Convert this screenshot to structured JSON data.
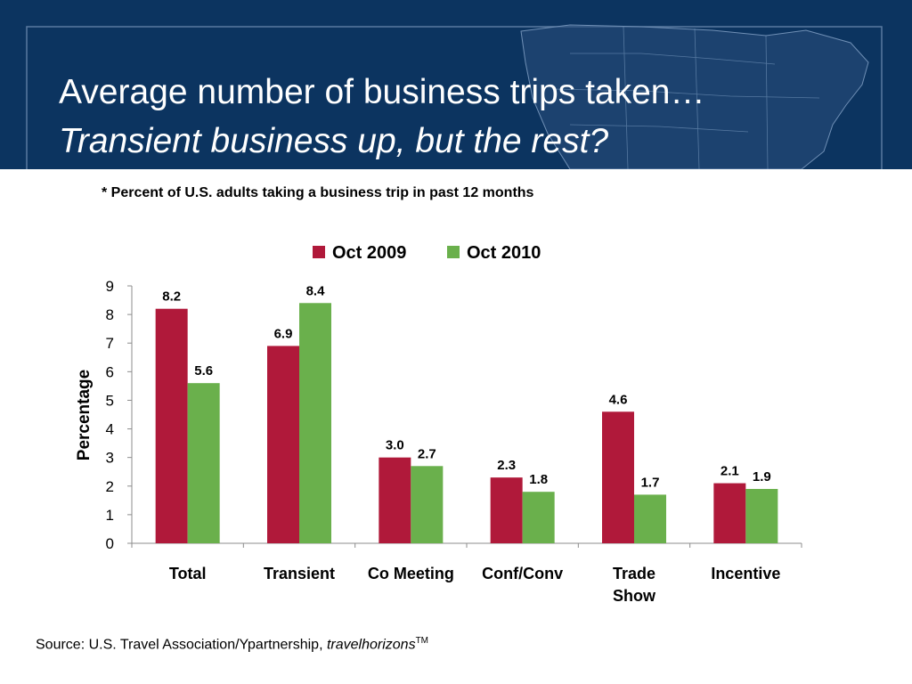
{
  "slide": {
    "title_line1": "Average number of business trips taken…",
    "title_line2": "Transient business up, but the rest?",
    "subtitle": "* Percent of U.S. adults taking a business trip in past 12 months",
    "source_prefix": "Source:  U.S. Travel Association/Ypartnership, ",
    "source_italic": "travelhorizons",
    "source_sup": "TM"
  },
  "colors": {
    "banner": "#0c3460",
    "oct2009": "#b0193a",
    "oct2010": "#6ab04c"
  },
  "chart_data": {
    "type": "bar",
    "title": "",
    "xlabel": "",
    "ylabel": "Percentage",
    "ylim": [
      0,
      9
    ],
    "yticks": [
      "0",
      "1",
      "2",
      "3",
      "4",
      "5",
      "6",
      "7",
      "8",
      "9"
    ],
    "grid": false,
    "legend_position": "top",
    "categories": [
      [
        "Total"
      ],
      [
        "Transient"
      ],
      [
        "Co Meeting"
      ],
      [
        "Conf/Conv"
      ],
      [
        "Trade",
        "Show"
      ],
      [
        "Incentive"
      ]
    ],
    "series": [
      {
        "name": "Oct 2009",
        "color": "#b0193a",
        "values": [
          8.2,
          6.9,
          3.0,
          2.3,
          4.6,
          2.1
        ],
        "labels": [
          "8.2",
          "6.9",
          "3.0",
          "2.3",
          "4.6",
          "2.1"
        ]
      },
      {
        "name": "Oct 2010",
        "color": "#6ab04c",
        "values": [
          5.6,
          8.4,
          2.7,
          1.8,
          1.7,
          1.9
        ],
        "labels": [
          "5.6",
          "8.4",
          "2.7",
          "1.8",
          "1.7",
          "1.9"
        ]
      }
    ]
  }
}
